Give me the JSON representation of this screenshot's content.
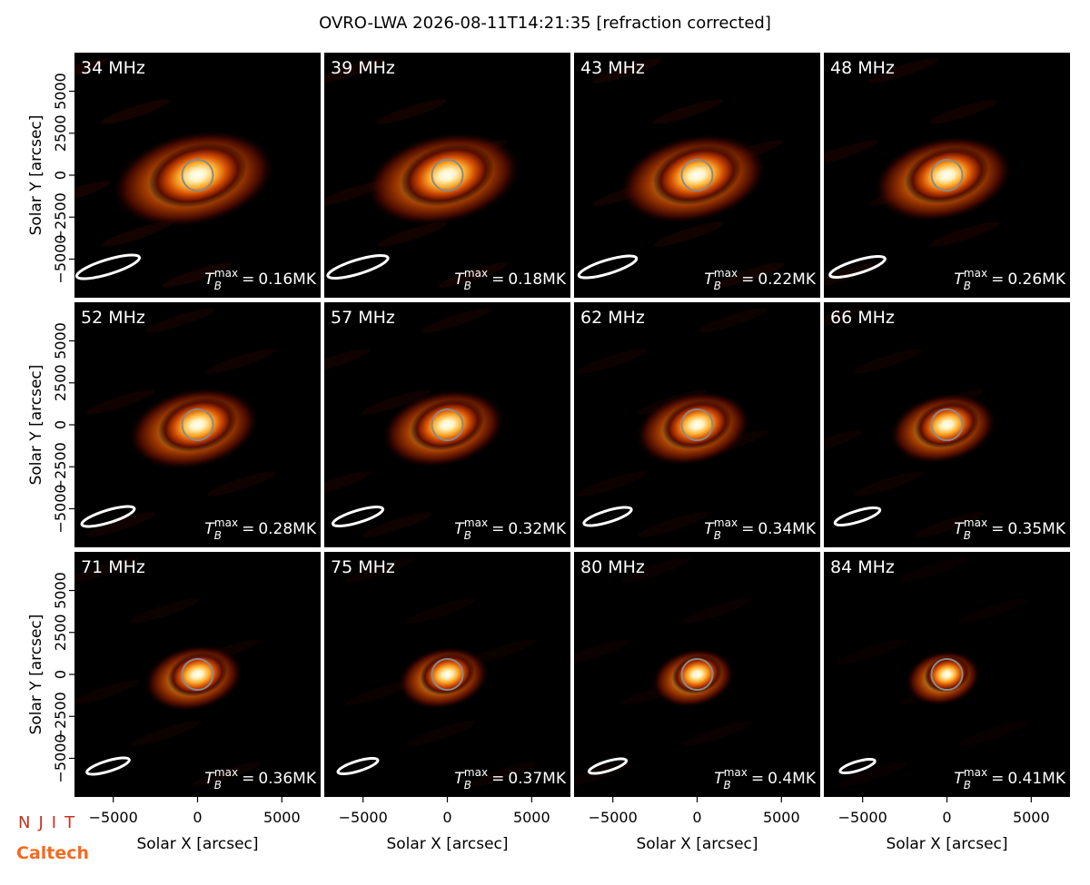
{
  "chart_data": {
    "type": "image",
    "title": "OVRO-LWA 2026-08-11T14:21:35 [refraction corrected]",
    "xlabel": "Solar X [arcsec]",
    "ylabel": "Solar Y [arcsec]",
    "xlim": [
      -7300,
      7300
    ],
    "ylim": [
      -7300,
      7300
    ],
    "xticks": [
      {
        "value": -5000,
        "label": "−5000"
      },
      0,
      5000
    ],
    "yticks": [
      {
        "value": -5000,
        "label": "−5000"
      },
      {
        "value": -2500,
        "label": "−2500"
      },
      0,
      2500,
      5000
    ],
    "colormap": "afmhot",
    "tb_symbol": "T",
    "tb_sub": "B",
    "tb_sup": "max",
    "tb_eq": "=",
    "panels": [
      {
        "label": "34 MHz",
        "tb": "0.16MK"
      },
      {
        "label": "39 MHz",
        "tb": "0.18MK"
      },
      {
        "label": "43 MHz",
        "tb": "0.22MK"
      },
      {
        "label": "48 MHz",
        "tb": "0.26MK"
      },
      {
        "label": "52 MHz",
        "tb": "0.28MK"
      },
      {
        "label": "57 MHz",
        "tb": "0.32MK"
      },
      {
        "label": "62 MHz",
        "tb": "0.34MK"
      },
      {
        "label": "66 MHz",
        "tb": "0.35MK"
      },
      {
        "label": "71 MHz",
        "tb": "0.36MK"
      },
      {
        "label": "75 MHz",
        "tb": "0.37MK"
      },
      {
        "label": "80 MHz",
        "tb": "0.4MK"
      },
      {
        "label": "84 MHz",
        "tb": "0.41MK"
      }
    ]
  },
  "logos": [
    "NJIT",
    "Caltech"
  ]
}
